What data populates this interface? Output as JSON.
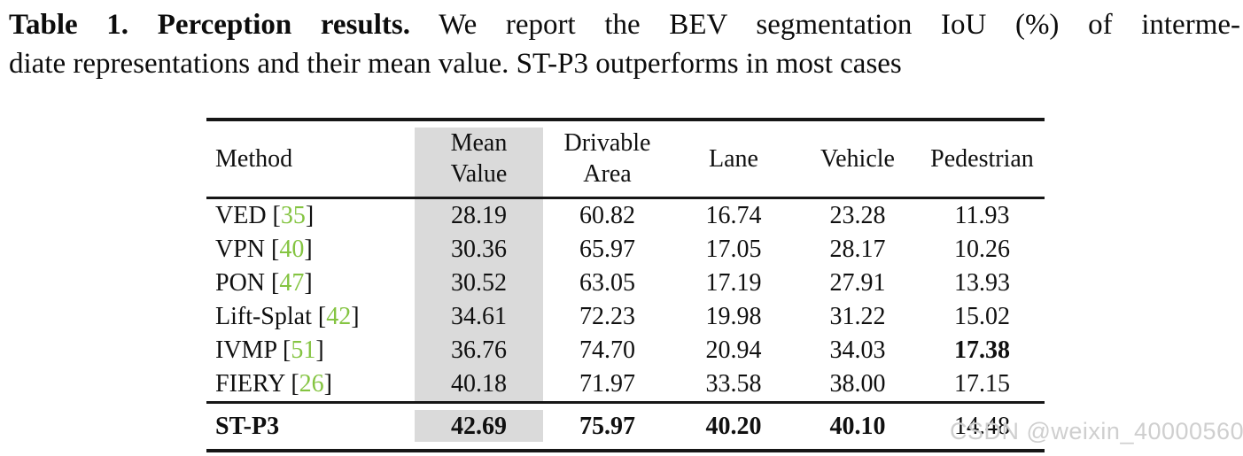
{
  "caption": {
    "bold": "Table 1. Perception results.",
    "line1_rest": " We report the BEV segmentation IoU (%) of interme-",
    "line2": "diate representations and their mean value. ST-P3 outperforms in most cases"
  },
  "table": {
    "cite_open": "[",
    "cite_close": "]",
    "columns": [
      {
        "id": "method",
        "lines": [
          "Method"
        ],
        "align": "left",
        "highlight": false
      },
      {
        "id": "mean-value",
        "lines": [
          "Mean",
          "Value"
        ],
        "align": "center",
        "highlight": true
      },
      {
        "id": "drivable-area",
        "lines": [
          "Drivable",
          "Area"
        ],
        "align": "center",
        "highlight": false
      },
      {
        "id": "lane",
        "lines": [
          "Lane"
        ],
        "align": "center",
        "highlight": false
      },
      {
        "id": "vehicle",
        "lines": [
          "Vehicle"
        ],
        "align": "center",
        "highlight": false
      },
      {
        "id": "pedestrian",
        "lines": [
          "Pedestrian"
        ],
        "align": "center",
        "highlight": false
      }
    ],
    "rows": [
      {
        "method": "VED",
        "cite": "35",
        "method_bold": false,
        "section": "body",
        "values": [
          "28.19",
          "60.82",
          "16.74",
          "23.28",
          "11.93"
        ],
        "bold_values": [
          false,
          false,
          false,
          false,
          false
        ]
      },
      {
        "method": "VPN",
        "cite": "40",
        "method_bold": false,
        "section": "body",
        "values": [
          "30.36",
          "65.97",
          "17.05",
          "28.17",
          "10.26"
        ],
        "bold_values": [
          false,
          false,
          false,
          false,
          false
        ]
      },
      {
        "method": "PON",
        "cite": "47",
        "method_bold": false,
        "section": "body",
        "values": [
          "30.52",
          "63.05",
          "17.19",
          "27.91",
          "13.93"
        ],
        "bold_values": [
          false,
          false,
          false,
          false,
          false
        ]
      },
      {
        "method": "Lift-Splat",
        "cite": "42",
        "method_bold": false,
        "section": "body",
        "values": [
          "34.61",
          "72.23",
          "19.98",
          "31.22",
          "15.02"
        ],
        "bold_values": [
          false,
          false,
          false,
          false,
          false
        ]
      },
      {
        "method": "IVMP",
        "cite": "51",
        "method_bold": false,
        "section": "body",
        "values": [
          "36.76",
          "74.70",
          "20.94",
          "34.03",
          "17.38"
        ],
        "bold_values": [
          false,
          false,
          false,
          false,
          true
        ]
      },
      {
        "method": "FIERY",
        "cite": "26",
        "method_bold": false,
        "section": "body",
        "values": [
          "40.18",
          "71.97",
          "33.58",
          "38.00",
          "17.15"
        ],
        "bold_values": [
          false,
          false,
          false,
          false,
          false
        ]
      },
      {
        "method": "ST-P3",
        "cite": null,
        "method_bold": true,
        "section": "footer",
        "values": [
          "42.69",
          "75.97",
          "40.20",
          "40.10",
          "14.48"
        ],
        "bold_values": [
          true,
          true,
          true,
          true,
          false
        ]
      }
    ]
  },
  "watermark": "CSDN @weixin_40000560",
  "colors": {
    "citation_green": "#84c441",
    "highlight_gray": "#dadada",
    "watermark_gray": "#cfcfcf",
    "rule_black": "#161616"
  }
}
